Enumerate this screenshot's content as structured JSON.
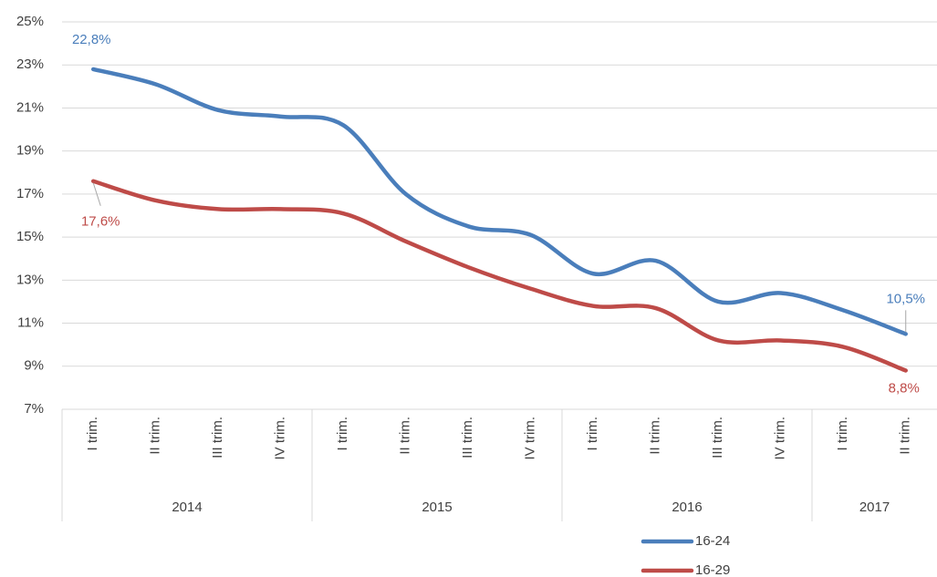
{
  "chart_data": {
    "type": "line",
    "categories": [
      "I trim.",
      "II trim.",
      "III trim.",
      "IV trim.",
      "I trim.",
      "II trim.",
      "III trim.",
      "IV trim.",
      "I trim.",
      "II trim.",
      "III trim.",
      "IV trim.",
      "I trim.",
      "II trim."
    ],
    "category_groups": [
      {
        "label": "2014",
        "span": 4
      },
      {
        "label": "2015",
        "span": 4
      },
      {
        "label": "2016",
        "span": 4
      },
      {
        "label": "2017",
        "span": 2
      }
    ],
    "series": [
      {
        "name": "16-24",
        "color": "#4a7ebb",
        "values": [
          22.8,
          22.1,
          20.9,
          20.6,
          20.2,
          17.0,
          15.5,
          15.1,
          13.3,
          13.9,
          12.0,
          12.4,
          11.6,
          10.5
        ],
        "value_labels": [
          "22,8%",
          null,
          null,
          null,
          null,
          null,
          null,
          null,
          null,
          null,
          null,
          null,
          null,
          "10,5%"
        ]
      },
      {
        "name": "16-29",
        "color": "#be4b48",
        "values": [
          17.6,
          16.7,
          16.3,
          16.3,
          16.1,
          14.8,
          13.6,
          12.6,
          11.8,
          11.7,
          10.2,
          10.2,
          9.9,
          8.8
        ],
        "value_labels": [
          "17,6%",
          null,
          null,
          null,
          null,
          null,
          null,
          null,
          null,
          null,
          null,
          null,
          null,
          "8,8%"
        ]
      }
    ],
    "ylim": [
      7,
      25
    ],
    "yticks": [
      {
        "value": 7,
        "label": "7%"
      },
      {
        "value": 9,
        "label": "9%"
      },
      {
        "value": 11,
        "label": "11%"
      },
      {
        "value": 13,
        "label": "13%"
      },
      {
        "value": 15,
        "label": "15%"
      },
      {
        "value": 17,
        "label": "17%"
      },
      {
        "value": 19,
        "label": "19%"
      },
      {
        "value": 21,
        "label": "21%"
      },
      {
        "value": 23,
        "label": "23%"
      },
      {
        "value": 25,
        "label": "25%"
      }
    ],
    "grid": true,
    "smooth": true,
    "legend": "bottom"
  }
}
